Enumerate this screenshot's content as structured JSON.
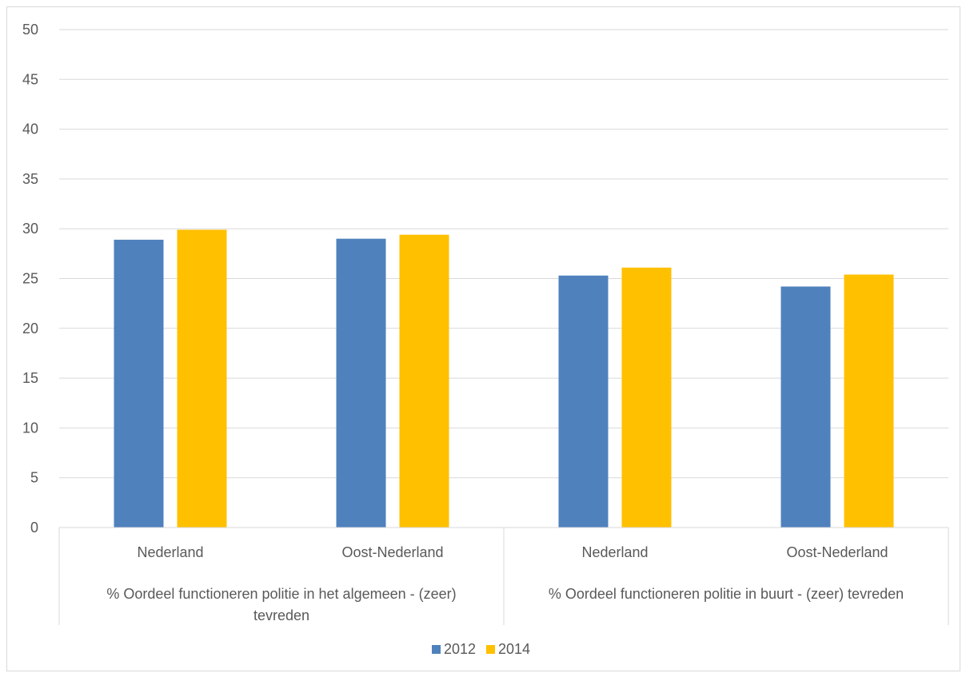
{
  "chart_data": {
    "type": "bar",
    "title": "",
    "xlabel": "",
    "ylabel": "",
    "ylim": [
      0,
      50
    ],
    "yticks": [
      0,
      5,
      10,
      15,
      20,
      25,
      30,
      35,
      40,
      45,
      50
    ],
    "grid": true,
    "legend_position": "bottom",
    "groups": [
      {
        "label_lines": [
          "% Oordeel functioneren politie in het algemeen - (zeer)",
          "tevreden"
        ]
      },
      {
        "label_lines": [
          "% Oordeel functioneren politie in buurt - (zeer) tevreden"
        ]
      }
    ],
    "categories": [
      "Nederland",
      "Oost-Nederland",
      "Nederland",
      "Oost-Nederland"
    ],
    "series": [
      {
        "name": "2012",
        "color": "#4f81bd",
        "values": [
          28.9,
          29.0,
          25.3,
          24.2
        ]
      },
      {
        "name": "2014",
        "color": "#ffc000",
        "values": [
          29.9,
          29.4,
          26.1,
          25.4
        ]
      }
    ]
  }
}
